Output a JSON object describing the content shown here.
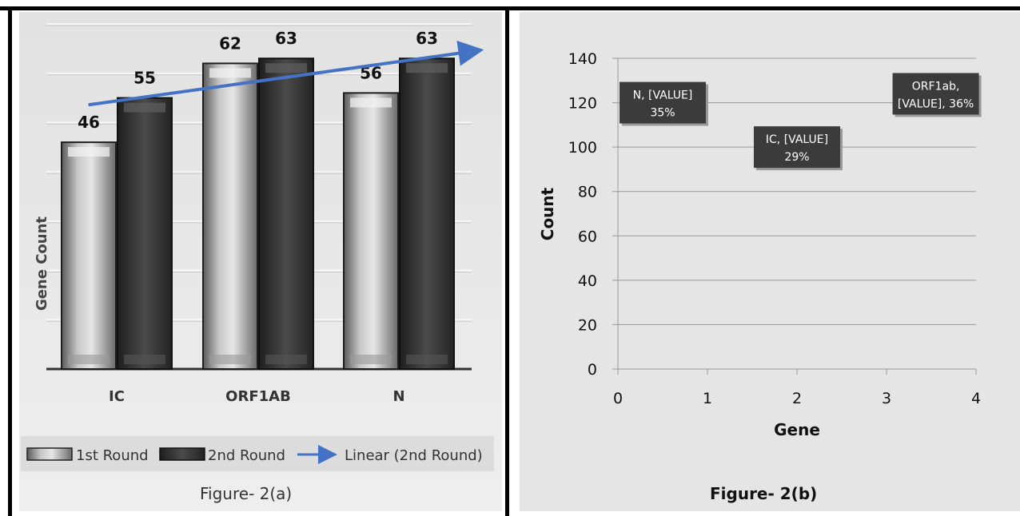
{
  "colors": {
    "bar_round1_light": "#d4d4d4",
    "bar_round1_dark": "#6e6e6e",
    "bar_round2": "#3a3a3a",
    "trendline": "#4472c4",
    "label_box": "#3b3b3b"
  },
  "chart_data": [
    {
      "type": "bar",
      "categories": [
        "IC",
        "ORF1AB",
        "N"
      ],
      "series": [
        {
          "name": "1st Round",
          "values": [
            46,
            62,
            56
          ]
        },
        {
          "name": "2nd Round",
          "values": [
            55,
            63,
            63
          ]
        }
      ],
      "trendline": {
        "name": "Linear (2nd Round)",
        "series": "2nd Round",
        "type": "linear"
      },
      "ylabel": "Gene Count",
      "ylim": [
        0,
        70
      ],
      "grid": true,
      "legend": "bottom",
      "data_labels": true,
      "caption": "Figure- 2(a)"
    },
    {
      "type": "scatter",
      "xlabel": "Gene",
      "ylabel": "Count",
      "xlim": [
        0,
        4
      ],
      "ylim": [
        0,
        140
      ],
      "xticks": [
        "0",
        "1",
        "2",
        "3",
        "4"
      ],
      "yticks": [
        "0",
        "20",
        "40",
        "60",
        "80",
        "100",
        "120",
        "140"
      ],
      "grid": true,
      "annotations": [
        {
          "line1": "N,  [VALUE]",
          "line2": "35%",
          "x": 0.5,
          "y": 120
        },
        {
          "line1": "IC,  [VALUE]",
          "line2": "29%",
          "x": 2.0,
          "y": 100
        },
        {
          "line1": "ORF1ab,",
          "line2": "[VALUE], 36%",
          "x": 3.55,
          "y": 124
        }
      ],
      "caption": "Figure- 2(b)"
    }
  ]
}
